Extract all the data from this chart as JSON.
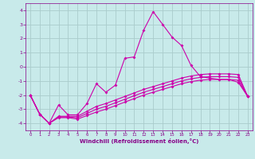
{
  "background_color": "#c8eaea",
  "grid_color": "#aacccc",
  "line_color": "#cc00aa",
  "xlabel": "Windchill (Refroidissement éolien,°C)",
  "xlabel_color": "#880088",
  "tick_color": "#880088",
  "xlim": [
    -0.5,
    23.5
  ],
  "ylim": [
    -4.5,
    4.5
  ],
  "yticks": [
    -4,
    -3,
    -2,
    -1,
    0,
    1,
    2,
    3,
    4
  ],
  "xticks": [
    0,
    1,
    2,
    3,
    4,
    5,
    6,
    7,
    8,
    9,
    10,
    11,
    12,
    13,
    14,
    15,
    16,
    17,
    18,
    19,
    20,
    21,
    22,
    23
  ],
  "series": [
    {
      "x": [
        0,
        1,
        2,
        3,
        4,
        5,
        6,
        7,
        8,
        9,
        10,
        11,
        12,
        13,
        14,
        15,
        16,
        17,
        18,
        19,
        20,
        21,
        22,
        23
      ],
      "y": [
        -2.0,
        -3.35,
        -4.0,
        -2.7,
        -3.4,
        -3.4,
        -2.6,
        -1.2,
        -1.8,
        -1.3,
        0.6,
        0.7,
        2.6,
        3.9,
        3.0,
        2.1,
        1.5,
        0.1,
        -0.7,
        -0.8,
        -0.9,
        -0.9,
        -1.1,
        -2.1
      ]
    },
    {
      "x": [
        0,
        1,
        2,
        3,
        4,
        5,
        6,
        7,
        8,
        9,
        10,
        11,
        12,
        13,
        14,
        15,
        16,
        17,
        18,
        19,
        20,
        21,
        22,
        23
      ],
      "y": [
        -2.0,
        -3.35,
        -4.0,
        -3.5,
        -3.5,
        -3.5,
        -3.15,
        -2.8,
        -2.6,
        -2.35,
        -2.1,
        -1.85,
        -1.6,
        -1.4,
        -1.2,
        -1.0,
        -0.8,
        -0.65,
        -0.55,
        -0.5,
        -0.5,
        -0.5,
        -0.55,
        -2.1
      ]
    },
    {
      "x": [
        0,
        1,
        2,
        3,
        4,
        5,
        6,
        7,
        8,
        9,
        10,
        11,
        12,
        13,
        14,
        15,
        16,
        17,
        18,
        19,
        20,
        21,
        22,
        23
      ],
      "y": [
        -2.0,
        -3.35,
        -4.0,
        -3.55,
        -3.55,
        -3.6,
        -3.3,
        -3.0,
        -2.8,
        -2.55,
        -2.3,
        -2.05,
        -1.8,
        -1.6,
        -1.4,
        -1.2,
        -1.0,
        -0.85,
        -0.75,
        -0.7,
        -0.7,
        -0.7,
        -0.75,
        -2.1
      ]
    },
    {
      "x": [
        0,
        1,
        2,
        3,
        4,
        5,
        6,
        7,
        8,
        9,
        10,
        11,
        12,
        13,
        14,
        15,
        16,
        17,
        18,
        19,
        20,
        21,
        22,
        23
      ],
      "y": [
        -2.0,
        -3.35,
        -4.0,
        -3.6,
        -3.6,
        -3.7,
        -3.45,
        -3.2,
        -3.0,
        -2.75,
        -2.5,
        -2.25,
        -2.0,
        -1.8,
        -1.6,
        -1.4,
        -1.2,
        -1.05,
        -0.95,
        -0.9,
        -0.9,
        -0.9,
        -0.95,
        -2.1
      ]
    }
  ],
  "figsize": [
    3.2,
    2.0
  ],
  "dpi": 100
}
